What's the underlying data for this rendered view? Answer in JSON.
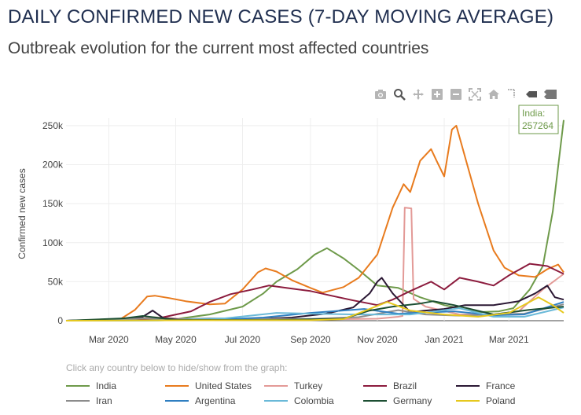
{
  "header": {
    "title": "DAILY CONFIRMED NEW CASES (7-DAY MOVING AVERAGE)",
    "subtitle": "Outbreak evolution for the current most affected countries"
  },
  "modebar": [
    "camera-icon",
    "zoom-icon",
    "pan-icon",
    "zoom-in-icon",
    "zoom-out-icon",
    "autoscale-icon",
    "home-icon",
    "spike-lines-icon",
    "hover-closest-icon",
    "hover-compare-icon"
  ],
  "hover_label": {
    "country": "India:",
    "value": "257264"
  },
  "legend_hint": "Click any country below to hide/show from the graph:",
  "chart_data": {
    "type": "line",
    "title": "DAILY CONFIRMED NEW CASES (7-DAY MOVING AVERAGE)",
    "ylabel": "Confirmed new cases",
    "xlabel": "",
    "x_range": [
      "2020-01-22",
      "2021-04-20"
    ],
    "ylim": [
      0,
      260000
    ],
    "x_ticks": [
      {
        "date": "2020-03-01",
        "label": "Mar 2020"
      },
      {
        "date": "2020-05-01",
        "label": "May 2020"
      },
      {
        "date": "2020-07-01",
        "label": "Jul 2020"
      },
      {
        "date": "2020-09-01",
        "label": "Sep 2020"
      },
      {
        "date": "2020-11-01",
        "label": "Nov 2020"
      },
      {
        "date": "2021-01-01",
        "label": "Jan 2021"
      },
      {
        "date": "2021-03-01",
        "label": "Mar 2021"
      }
    ],
    "y_ticks": [
      {
        "value": 0,
        "label": "0"
      },
      {
        "value": 50000,
        "label": "50k"
      },
      {
        "value": 100000,
        "label": "100k"
      },
      {
        "value": 150000,
        "label": "150k"
      },
      {
        "value": 200000,
        "label": "200k"
      },
      {
        "value": 250000,
        "label": "250k"
      }
    ],
    "grid": true,
    "legend_position": "bottom",
    "series": [
      {
        "name": "India",
        "color": "#6e9a4a",
        "points": [
          [
            "2020-01-22",
            0
          ],
          [
            "2020-03-25",
            500
          ],
          [
            "2020-05-01",
            2000
          ],
          [
            "2020-06-01",
            8000
          ],
          [
            "2020-07-01",
            18000
          ],
          [
            "2020-07-20",
            35000
          ],
          [
            "2020-08-01",
            50000
          ],
          [
            "2020-08-20",
            66000
          ],
          [
            "2020-09-05",
            85000
          ],
          [
            "2020-09-16",
            93000
          ],
          [
            "2020-10-01",
            80000
          ],
          [
            "2020-10-15",
            65000
          ],
          [
            "2020-11-01",
            45000
          ],
          [
            "2020-11-20",
            42000
          ],
          [
            "2020-12-10",
            30000
          ],
          [
            "2021-01-01",
            20000
          ],
          [
            "2021-02-01",
            11000
          ],
          [
            "2021-02-20",
            12000
          ],
          [
            "2021-03-05",
            16000
          ],
          [
            "2021-03-20",
            40000
          ],
          [
            "2021-04-01",
            70000
          ],
          [
            "2021-04-10",
            140000
          ],
          [
            "2021-04-20",
            257264
          ]
        ]
      },
      {
        "name": "United States",
        "color": "#e87b1e",
        "points": [
          [
            "2020-01-22",
            0
          ],
          [
            "2020-03-10",
            500
          ],
          [
            "2020-03-25",
            14000
          ],
          [
            "2020-04-05",
            31000
          ],
          [
            "2020-04-12",
            32000
          ],
          [
            "2020-04-25",
            29000
          ],
          [
            "2020-05-10",
            25000
          ],
          [
            "2020-06-01",
            21000
          ],
          [
            "2020-06-15",
            22000
          ],
          [
            "2020-07-01",
            40000
          ],
          [
            "2020-07-15",
            62000
          ],
          [
            "2020-07-22",
            67000
          ],
          [
            "2020-08-01",
            63000
          ],
          [
            "2020-08-15",
            52000
          ],
          [
            "2020-09-01",
            42000
          ],
          [
            "2020-09-12",
            36000
          ],
          [
            "2020-10-01",
            43000
          ],
          [
            "2020-10-15",
            55000
          ],
          [
            "2020-11-01",
            85000
          ],
          [
            "2020-11-15",
            145000
          ],
          [
            "2020-11-25",
            175000
          ],
          [
            "2020-12-01",
            165000
          ],
          [
            "2020-12-10",
            205000
          ],
          [
            "2020-12-20",
            220000
          ],
          [
            "2020-12-25",
            205000
          ],
          [
            "2021-01-01",
            185000
          ],
          [
            "2021-01-08",
            245000
          ],
          [
            "2021-01-12",
            250000
          ],
          [
            "2021-01-20",
            210000
          ],
          [
            "2021-02-01",
            150000
          ],
          [
            "2021-02-15",
            90000
          ],
          [
            "2021-02-25",
            68000
          ],
          [
            "2021-03-10",
            58000
          ],
          [
            "2021-03-25",
            56000
          ],
          [
            "2021-04-05",
            66000
          ],
          [
            "2021-04-15",
            72000
          ],
          [
            "2021-04-20",
            62000
          ]
        ]
      },
      {
        "name": "Turkey",
        "color": "#e39a97",
        "points": [
          [
            "2020-01-22",
            0
          ],
          [
            "2020-03-15",
            0
          ],
          [
            "2020-04-10",
            4500
          ],
          [
            "2020-05-15",
            1500
          ],
          [
            "2020-07-01",
            1200
          ],
          [
            "2020-09-15",
            1700
          ],
          [
            "2020-11-01",
            2500
          ],
          [
            "2020-11-20",
            5000
          ],
          [
            "2020-11-24",
            6000
          ],
          [
            "2020-11-26",
            145000
          ],
          [
            "2020-12-02",
            144000
          ],
          [
            "2020-12-04",
            28000
          ],
          [
            "2020-12-15",
            18000
          ],
          [
            "2021-01-15",
            8000
          ],
          [
            "2021-02-15",
            8000
          ],
          [
            "2021-03-10",
            12000
          ],
          [
            "2021-04-01",
            40000
          ],
          [
            "2021-04-20",
            60000
          ]
        ]
      },
      {
        "name": "Brazil",
        "color": "#8c1c3e",
        "points": [
          [
            "2020-01-22",
            0
          ],
          [
            "2020-03-15",
            500
          ],
          [
            "2020-04-15",
            3000
          ],
          [
            "2020-05-15",
            12000
          ],
          [
            "2020-06-01",
            24000
          ],
          [
            "2020-06-20",
            34000
          ],
          [
            "2020-07-10",
            40000
          ],
          [
            "2020-07-25",
            45000
          ],
          [
            "2020-08-10",
            42000
          ],
          [
            "2020-09-01",
            38000
          ],
          [
            "2020-09-20",
            32000
          ],
          [
            "2020-10-10",
            26000
          ],
          [
            "2020-11-01",
            20000
          ],
          [
            "2020-11-15",
            27000
          ],
          [
            "2020-12-01",
            38000
          ],
          [
            "2020-12-20",
            50000
          ],
          [
            "2021-01-01",
            40000
          ],
          [
            "2021-01-15",
            55000
          ],
          [
            "2021-02-01",
            50000
          ],
          [
            "2021-02-15",
            45000
          ],
          [
            "2021-03-01",
            58000
          ],
          [
            "2021-03-20",
            73000
          ],
          [
            "2021-04-05",
            70000
          ],
          [
            "2021-04-20",
            60000
          ]
        ]
      },
      {
        "name": "France",
        "color": "#2b1834",
        "points": [
          [
            "2020-01-22",
            0
          ],
          [
            "2020-03-15",
            2000
          ],
          [
            "2020-04-01",
            5000
          ],
          [
            "2020-04-10",
            13000
          ],
          [
            "2020-04-20",
            3000
          ],
          [
            "2020-05-15",
            1000
          ],
          [
            "2020-07-01",
            1500
          ],
          [
            "2020-08-15",
            4000
          ],
          [
            "2020-09-15",
            9000
          ],
          [
            "2020-10-10",
            17000
          ],
          [
            "2020-10-25",
            35000
          ],
          [
            "2020-11-01",
            50000
          ],
          [
            "2020-11-05",
            55000
          ],
          [
            "2020-11-15",
            35000
          ],
          [
            "2020-12-01",
            11000
          ],
          [
            "2020-12-15",
            13000
          ],
          [
            "2021-01-01",
            15000
          ],
          [
            "2021-01-20",
            20000
          ],
          [
            "2021-02-15",
            20000
          ],
          [
            "2021-03-10",
            25000
          ],
          [
            "2021-03-25",
            35000
          ],
          [
            "2021-04-05",
            45000
          ],
          [
            "2021-04-12",
            30000
          ],
          [
            "2021-04-20",
            27000
          ]
        ]
      },
      {
        "name": "Iran",
        "color": "#8c8c8c",
        "points": [
          [
            "2020-01-22",
            0
          ],
          [
            "2020-02-25",
            100
          ],
          [
            "2020-04-01",
            3000
          ],
          [
            "2020-05-01",
            1500
          ],
          [
            "2020-06-01",
            3000
          ],
          [
            "2020-07-01",
            2500
          ],
          [
            "2020-09-01",
            2200
          ],
          [
            "2020-10-15",
            4500
          ],
          [
            "2020-11-20",
            13500
          ],
          [
            "2020-12-15",
            8000
          ],
          [
            "2021-01-15",
            6500
          ],
          [
            "2021-02-15",
            8000
          ],
          [
            "2021-03-15",
            9000
          ],
          [
            "2021-04-20",
            21000
          ]
        ]
      },
      {
        "name": "Argentina",
        "color": "#2f7fc1",
        "points": [
          [
            "2020-01-22",
            0
          ],
          [
            "2020-04-01",
            200
          ],
          [
            "2020-06-01",
            1000
          ],
          [
            "2020-07-20",
            4000
          ],
          [
            "2020-09-01",
            10000
          ],
          [
            "2020-10-20",
            15000
          ],
          [
            "2020-11-20",
            9000
          ],
          [
            "2021-01-10",
            12000
          ],
          [
            "2021-02-15",
            7000
          ],
          [
            "2021-03-15",
            8000
          ],
          [
            "2021-04-20",
            24000
          ]
        ]
      },
      {
        "name": "Colombia",
        "color": "#6ab9d8",
        "points": [
          [
            "2020-01-22",
            0
          ],
          [
            "2020-04-15",
            200
          ],
          [
            "2020-06-15",
            3000
          ],
          [
            "2020-08-01",
            10000
          ],
          [
            "2020-09-01",
            9000
          ],
          [
            "2020-10-15",
            8000
          ],
          [
            "2020-12-01",
            8000
          ],
          [
            "2021-01-15",
            16000
          ],
          [
            "2021-02-15",
            5000
          ],
          [
            "2021-03-15",
            5000
          ],
          [
            "2021-04-20",
            17000
          ]
        ]
      },
      {
        "name": "Germany",
        "color": "#1c4f33",
        "points": [
          [
            "2020-01-22",
            0
          ],
          [
            "2020-03-15",
            3000
          ],
          [
            "2020-04-01",
            6000
          ],
          [
            "2020-05-01",
            1000
          ],
          [
            "2020-08-01",
            900
          ],
          [
            "2020-10-01",
            2500
          ],
          [
            "2020-10-25",
            13000
          ],
          [
            "2020-11-15",
            18000
          ],
          [
            "2020-12-10",
            22000
          ],
          [
            "2020-12-22",
            25000
          ],
          [
            "2021-01-10",
            20000
          ],
          [
            "2021-02-15",
            8000
          ],
          [
            "2021-03-20",
            14000
          ],
          [
            "2021-04-20",
            18000
          ]
        ]
      },
      {
        "name": "Poland",
        "color": "#e6c81e",
        "points": [
          [
            "2020-01-22",
            0
          ],
          [
            "2020-04-01",
            400
          ],
          [
            "2020-09-01",
            600
          ],
          [
            "2020-10-01",
            2000
          ],
          [
            "2020-10-25",
            15000
          ],
          [
            "2020-11-10",
            24000
          ],
          [
            "2020-12-01",
            13000
          ],
          [
            "2021-01-01",
            8000
          ],
          [
            "2021-02-01",
            5000
          ],
          [
            "2021-03-01",
            10000
          ],
          [
            "2021-03-28",
            30000
          ],
          [
            "2021-04-10",
            20000
          ],
          [
            "2021-04-20",
            10000
          ]
        ]
      }
    ]
  }
}
